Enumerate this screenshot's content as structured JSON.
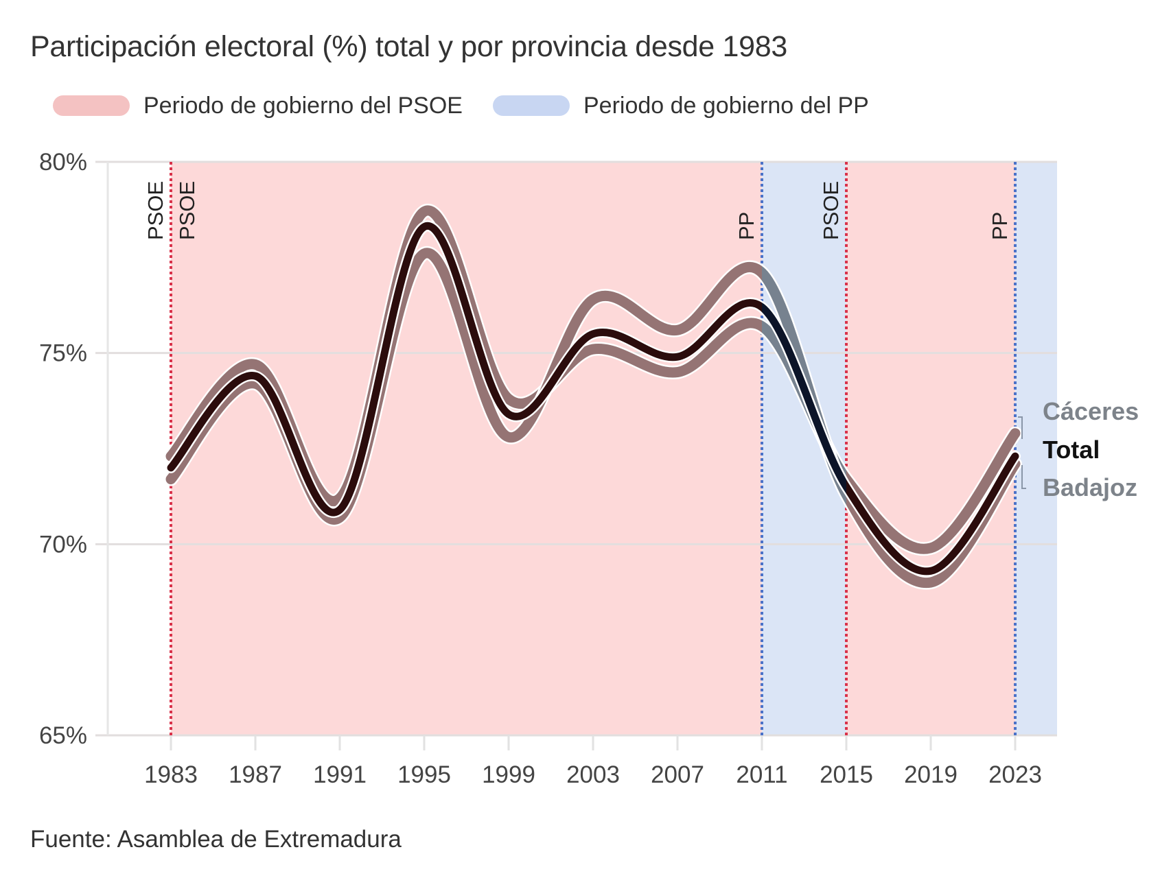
{
  "chart_data": {
    "type": "line",
    "title": "Participación electoral (%) total y por provincia desde 1983",
    "source": "Fuente: Asamblea de Extremadura",
    "xlabel": "",
    "ylabel": "",
    "x": [
      1983,
      1987,
      1991,
      1995,
      1999,
      2003,
      2007,
      2011,
      2015,
      2019,
      2023
    ],
    "x_ticks": [
      "1983",
      "1987",
      "1991",
      "1995",
      "1999",
      "2003",
      "2007",
      "2011",
      "2015",
      "2019",
      "2023"
    ],
    "xlim": [
      1980,
      2025
    ],
    "ylim": [
      65,
      80
    ],
    "y_ticks": [
      65,
      70,
      75,
      80
    ],
    "y_tick_labels": [
      "65%",
      "70%",
      "75%",
      "80%"
    ],
    "grid": true,
    "legend": {
      "placement": "top-left",
      "entries": [
        {
          "label": "Periodo de gobierno del PSOE",
          "color": "#f4c2c2"
        },
        {
          "label": "Periodo de gobierno del PP",
          "color": "#c8d6f2"
        }
      ]
    },
    "periods": [
      {
        "party": "PSOE",
        "start": 1983,
        "end": 2011,
        "fill": "#fdd9d9",
        "line_color": "#d9324a"
      },
      {
        "party": "PP",
        "start": 2011,
        "end": 2015,
        "fill": "#dbe5f6",
        "line_color": "#4b72c8"
      },
      {
        "party": "PSOE",
        "start": 2015,
        "end": 2023,
        "fill": "#fdd9d9",
        "line_color": "#d9324a"
      },
      {
        "party": "PP",
        "start": 2023,
        "end": 2025,
        "fill": "#dbe5f6",
        "line_color": "#4b72c8"
      }
    ],
    "period_markers": [
      {
        "label": "PSOE",
        "year": 1983,
        "side": "left",
        "color": "#d9324a"
      },
      {
        "label": "PSOE",
        "year": 1983,
        "side": "right",
        "color": "#d9324a"
      },
      {
        "label": "PP",
        "year": 2011,
        "side": "left",
        "color": "#4b72c8"
      },
      {
        "label": "PSOE",
        "year": 2015,
        "side": "left",
        "color": "#d9324a"
      },
      {
        "label": "PP",
        "year": 2023,
        "side": "left",
        "color": "#4b72c8"
      }
    ],
    "series": [
      {
        "name": "Cáceres",
        "values": [
          72.3,
          74.7,
          71.2,
          78.7,
          73.8,
          75.1,
          74.5,
          75.7,
          71.7,
          69.9,
          72.9
        ],
        "label_color": "#7d838a"
      },
      {
        "name": "Badajoz",
        "values": [
          71.7,
          74.2,
          70.7,
          77.6,
          72.8,
          76.4,
          75.6,
          77.1,
          71.3,
          69.0,
          72.1
        ],
        "label_color": "#7d838a"
      },
      {
        "name": "Total",
        "values": [
          72.0,
          74.4,
          70.9,
          78.3,
          73.4,
          75.5,
          74.9,
          76.2,
          71.5,
          69.3,
          72.3
        ],
        "label_color": "#111111"
      }
    ],
    "line_colors": {
      "psoe_period": "#957474",
      "pp_period": "#77828f",
      "total_psoe": "#2b0c0c",
      "total_pp": "#0c1428"
    },
    "end_labels_order": [
      "Cáceres",
      "Total",
      "Badajoz"
    ]
  }
}
